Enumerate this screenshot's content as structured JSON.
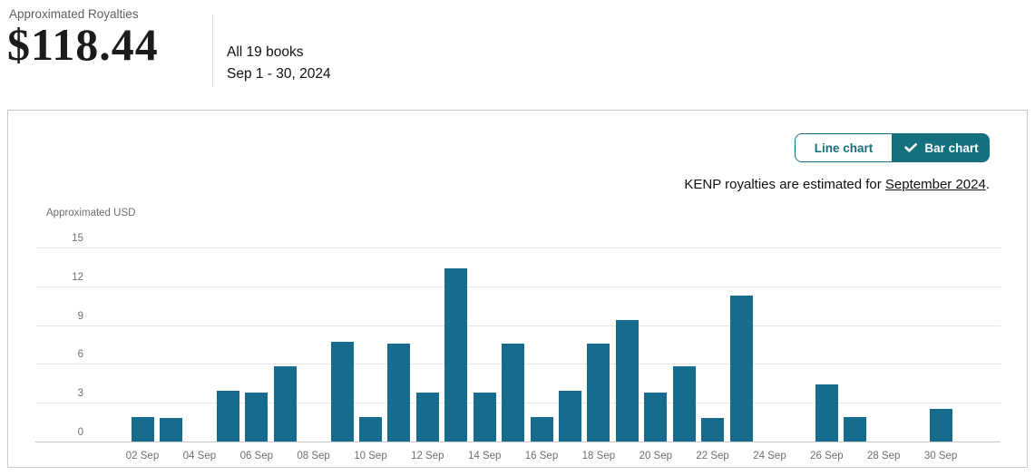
{
  "header": {
    "label": "Approximated Royalties",
    "amount": "$118.44",
    "scope": "All 19 books",
    "date_range": "Sep 1 - 30, 2024"
  },
  "chart_card": {
    "toggle": {
      "line_label": "Line chart",
      "bar_label": "Bar chart",
      "selected": "Bar chart",
      "selected_icon": "checkmark-icon"
    },
    "note": {
      "prefix": "KENP royalties are estimated for ",
      "link": "September 2024",
      "suffix": "."
    }
  },
  "chart_data": {
    "type": "bar",
    "title": "",
    "xlabel": "",
    "ylabel": "Approximated USD",
    "ylim": [
      0,
      15
    ],
    "yticks": [
      0,
      3,
      6,
      9,
      12,
      15
    ],
    "x_tick_every": 2,
    "grid": true,
    "legend": false,
    "bar_color": "#176b8d",
    "categories": [
      "01 Sep",
      "02 Sep",
      "03 Sep",
      "04 Sep",
      "05 Sep",
      "06 Sep",
      "07 Sep",
      "08 Sep",
      "09 Sep",
      "10 Sep",
      "11 Sep",
      "12 Sep",
      "13 Sep",
      "14 Sep",
      "15 Sep",
      "16 Sep",
      "17 Sep",
      "18 Sep",
      "19 Sep",
      "20 Sep",
      "21 Sep",
      "22 Sep",
      "23 Sep",
      "24 Sep",
      "25 Sep",
      "26 Sep",
      "27 Sep",
      "28 Sep",
      "29 Sep",
      "30 Sep"
    ],
    "values": [
      0,
      1.9,
      1.8,
      0,
      3.9,
      3.8,
      5.8,
      0,
      7.7,
      1.9,
      7.6,
      3.8,
      13.4,
      3.8,
      7.6,
      1.9,
      3.9,
      7.6,
      9.4,
      3.8,
      5.8,
      1.8,
      11.3,
      0,
      0,
      4.4,
      1.9,
      0,
      0,
      2.5
    ]
  },
  "colors": {
    "accent_teal": "#15707e",
    "bar_teal": "#176b8d",
    "gridline": "#e5e6e6",
    "axis_text": "#6b6f71"
  }
}
